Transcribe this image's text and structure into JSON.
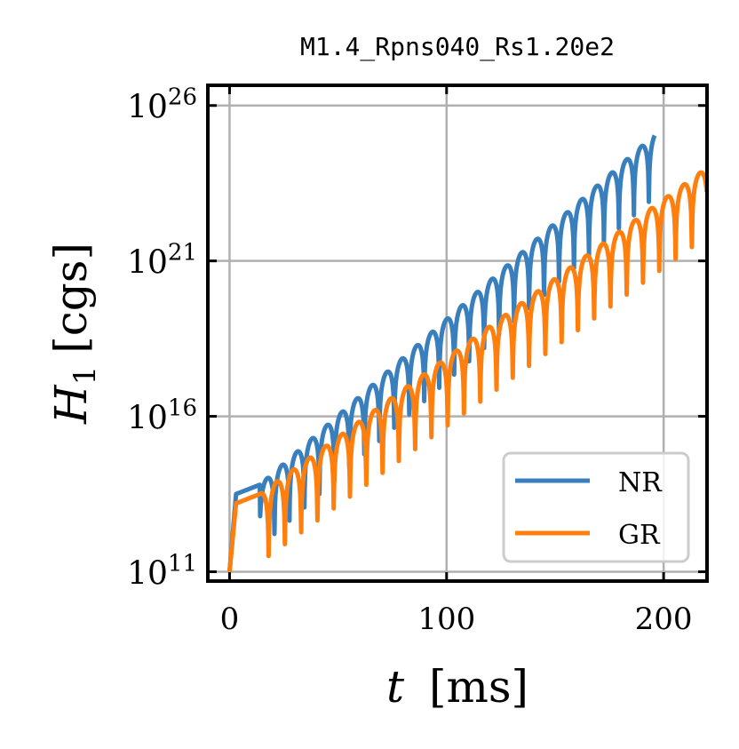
{
  "chart_data": {
    "type": "line",
    "title": "M1.4_Rpns040_Rs1.20e2",
    "xlabel": "t [ms]",
    "xlabel_parts": {
      "var": "t",
      "unit": "[ms]"
    },
    "ylabel": "H_1 [cgs]",
    "ylabel_parts": {
      "var": "H",
      "sub": "1",
      "unit": "[cgs]"
    },
    "yscale": "log",
    "xlim": [
      -10,
      220
    ],
    "ylim_exp": [
      10.7,
      26.65
    ],
    "xticks": [
      0,
      100,
      200
    ],
    "xtick_labels": [
      "0",
      "100",
      "200"
    ],
    "yticks_exp": [
      11,
      16,
      21,
      26
    ],
    "ytick_labels": [
      {
        "base": "10",
        "exp": "11"
      },
      {
        "base": "10",
        "exp": "16"
      },
      {
        "base": "10",
        "exp": "21"
      },
      {
        "base": "10",
        "exp": "26"
      }
    ],
    "grid": true,
    "legend": {
      "position": "lower-right"
    },
    "series": [
      {
        "name": "NR",
        "color": "#3a7fbd",
        "t_end": 196,
        "period": 6.9,
        "phase": 0,
        "envelope": {
          "t": [
            0,
            3,
            14,
            190
          ],
          "log10": [
            11.0,
            13.5,
            13.8,
            24.7
          ]
        },
        "node_depth": 2.0
      },
      {
        "name": "GR",
        "color": "#ff7f0e",
        "t_end": 220,
        "period": 7.5,
        "phase": 3,
        "envelope": {
          "t": [
            0,
            3,
            14,
            220
          ],
          "log10": [
            11.0,
            13.2,
            13.5,
            24.0
          ]
        },
        "node_depth": 2.2
      }
    ]
  }
}
